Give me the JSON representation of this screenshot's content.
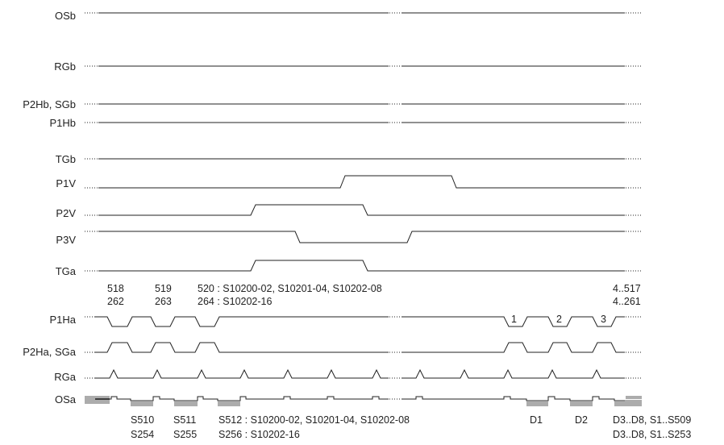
{
  "signals": [
    {
      "id": "osb",
      "label": "OSb"
    },
    {
      "id": "rgb",
      "label": "RGb"
    },
    {
      "id": "p2hb",
      "label": "P2Hb, SGb"
    },
    {
      "id": "p1hb",
      "label": "P1Hb"
    },
    {
      "id": "tgb",
      "label": "TGb"
    },
    {
      "id": "p1v",
      "label": "P1V"
    },
    {
      "id": "p2v",
      "label": "P2V"
    },
    {
      "id": "p3v",
      "label": "P3V"
    },
    {
      "id": "tga",
      "label": "TGa"
    },
    {
      "id": "p1ha",
      "label": "P1Ha"
    },
    {
      "id": "p2ha",
      "label": "P2Ha, SGa"
    },
    {
      "id": "rga",
      "label": "RGa"
    },
    {
      "id": "osa",
      "label": "OSa"
    }
  ],
  "top_annotations": {
    "row1": {
      "a": "518",
      "b": "519",
      "c": "520 : S10200-02, S10201-04, S10202-08",
      "end": "4..517"
    },
    "row2": {
      "a": "262",
      "b": "263",
      "c": "264 : S10202-16",
      "end": "4..261"
    }
  },
  "pulse_numbers": [
    "1",
    "2",
    "3"
  ],
  "bottom_annotations": {
    "row1": {
      "a": "S510",
      "b": "S511",
      "c": "S512 : S10200-02, S10201-04, S10202-08",
      "d1": "D1",
      "d2": "D2",
      "end": "D3..D8, S1..S509"
    },
    "row2": {
      "a": "S254",
      "b": "S255",
      "c": "S256 : S10202-16",
      "end": "D3..D8, S1..S253"
    }
  }
}
